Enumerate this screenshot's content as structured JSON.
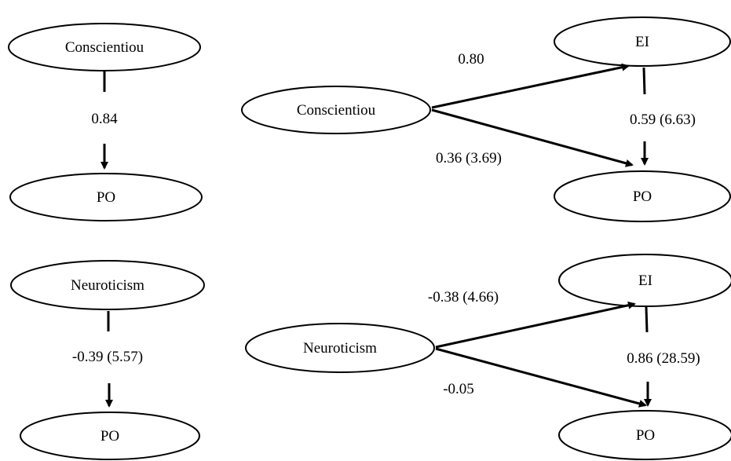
{
  "nodes": {
    "a_consc": "Conscientiou",
    "a_po": "PO",
    "b_consc": "Conscientiou",
    "b_ei": "EI",
    "b_po": "PO",
    "c_neuro": "Neuroticism",
    "c_po": "PO",
    "d_neuro": "Neuroticism",
    "d_ei": "EI",
    "d_po": "PO"
  },
  "edges": {
    "a_consc_po": "0.84",
    "b_consc_ei": "0.80",
    "b_consc_po": "0.36 (3.69)",
    "b_ei_po": "0.59 (6.63)",
    "c_neuro_po": "-0.39 (5.57)",
    "d_neuro_ei": "-0.38 (4.66)",
    "d_neuro_po": "-0.05",
    "d_ei_po": "0.86 (28.59)"
  }
}
